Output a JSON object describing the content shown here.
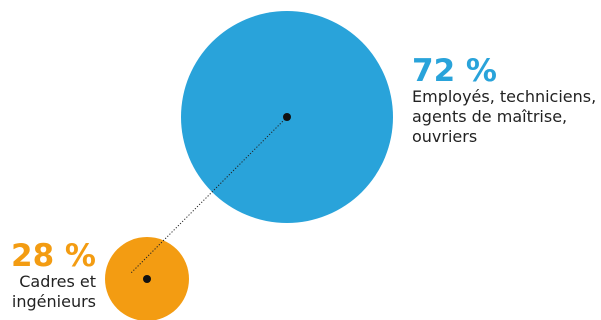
{
  "chart_data": {
    "type": "bubble",
    "series": [
      {
        "value": 72,
        "value_label": "72 %",
        "description_lines": [
          "Employés, techniciens,",
          "agents de maîtrise,",
          "ouvriers"
        ],
        "color": "#29a3da"
      },
      {
        "value": 28,
        "value_label": "28 %",
        "description_lines": [
          "Cadres et",
          "ingénieurs"
        ],
        "color": "#f39c12"
      }
    ],
    "connector": "dotted",
    "title": "",
    "xlabel": "",
    "ylabel": ""
  }
}
